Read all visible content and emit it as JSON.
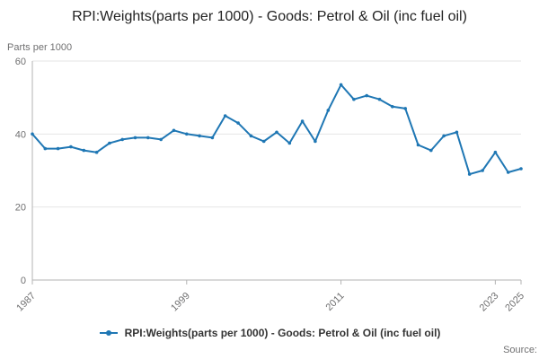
{
  "title": "RPI:Weights(parts per 1000) - Goods: Petrol & Oil (inc fuel oil)",
  "y_unit_label": "Parts per 1000",
  "legend": {
    "label": "RPI:Weights(parts per 1000) - Goods: Petrol & Oil (inc fuel oil)"
  },
  "source_label": "Source:",
  "colors": {
    "line": "#1f77b4",
    "grid": "#e6e6e6",
    "axis": "#b3b3b3",
    "tick_text": "#707071",
    "title_text": "#222222"
  },
  "chart_data": {
    "type": "line",
    "title": "RPI:Weights(parts per 1000) - Goods: Petrol & Oil (inc fuel oil)",
    "xlabel": "",
    "ylabel": "Parts per 1000",
    "ylim": [
      0,
      60
    ],
    "yticks": [
      0,
      20,
      40,
      60
    ],
    "xticks": [
      1987,
      1999,
      2011,
      2023,
      2025
    ],
    "grid": true,
    "legend_position": "bottom",
    "x": [
      1987,
      1988,
      1989,
      1990,
      1991,
      1992,
      1993,
      1994,
      1995,
      1996,
      1997,
      1998,
      1999,
      2000,
      2001,
      2002,
      2003,
      2004,
      2005,
      2006,
      2007,
      2008,
      2009,
      2010,
      2011,
      2012,
      2013,
      2014,
      2015,
      2016,
      2017,
      2018,
      2019,
      2020,
      2021,
      2022,
      2023,
      2024,
      2025
    ],
    "series": [
      {
        "name": "RPI:Weights(parts per 1000) - Goods: Petrol & Oil (inc fuel oil)",
        "values": [
          40,
          36,
          36,
          36.5,
          35.5,
          35,
          37.5,
          38.5,
          39,
          39,
          38.5,
          41,
          40,
          39.5,
          39,
          45,
          43,
          39.5,
          38,
          40.5,
          37.5,
          43.5,
          38,
          46.5,
          53.5,
          49.5,
          50.5,
          49.5,
          47.5,
          47,
          37,
          35.5,
          39.5,
          40.5,
          29,
          30,
          35,
          29.5,
          30.5
        ]
      }
    ]
  }
}
